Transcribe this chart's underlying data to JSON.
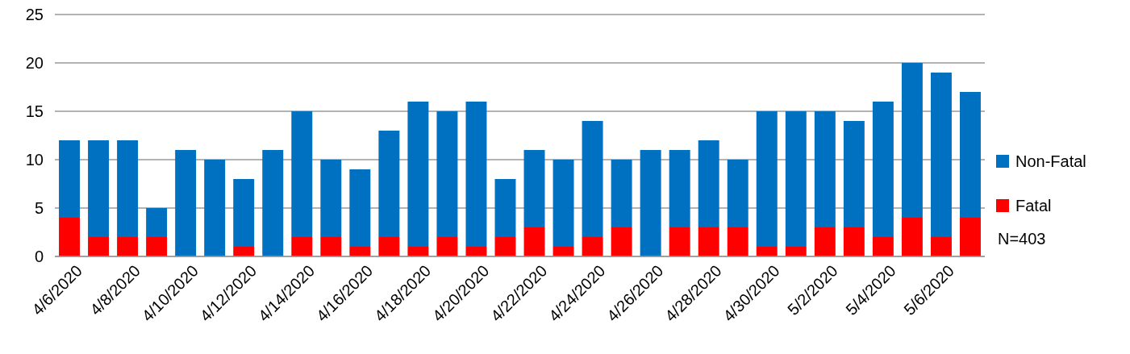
{
  "chart_data": {
    "type": "bar",
    "stacked": true,
    "categories": [
      "4/6/2020",
      null,
      "4/8/2020",
      null,
      "4/10/2020",
      null,
      "4/12/2020",
      null,
      "4/14/2020",
      null,
      "4/16/2020",
      null,
      "4/18/2020",
      null,
      "4/20/2020",
      null,
      "4/22/2020",
      null,
      "4/24/2020",
      null,
      "4/26/2020",
      null,
      "4/28/2020",
      null,
      "4/30/2020",
      null,
      "5/2/2020",
      null,
      "5/4/2020",
      null,
      "5/6/2020",
      null
    ],
    "series": [
      {
        "name": "Fatal",
        "color": "#ff0000",
        "values": [
          4,
          2,
          2,
          2,
          0,
          0,
          1,
          0,
          2,
          2,
          1,
          2,
          1,
          2,
          1,
          2,
          3,
          1,
          2,
          3,
          0,
          3,
          3,
          3,
          1,
          1,
          3,
          3,
          2,
          4,
          2,
          4
        ]
      },
      {
        "name": "Non-Fatal",
        "color": "#0070c0",
        "values": [
          8,
          10,
          10,
          3,
          11,
          10,
          7,
          11,
          13,
          8,
          8,
          11,
          15,
          13,
          15,
          6,
          8,
          9,
          12,
          7,
          11,
          8,
          9,
          7,
          14,
          14,
          12,
          11,
          14,
          16,
          17,
          13
        ]
      }
    ],
    "ylim": [
      0,
      25
    ],
    "yticks": [
      0,
      5,
      10,
      15,
      20,
      25
    ],
    "grid": "y",
    "legend": "right",
    "annotations": [
      "N=403"
    ]
  }
}
